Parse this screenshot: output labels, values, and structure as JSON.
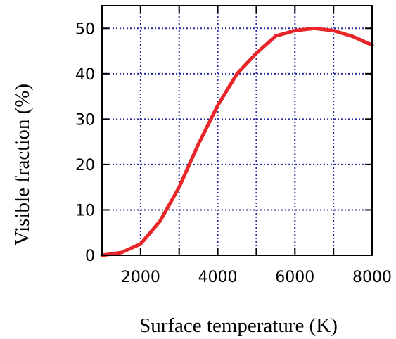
{
  "chart_data": {
    "type": "line",
    "xlabel": "Surface temperature (K)",
    "ylabel": "Visible fraction (%)",
    "xlim": [
      1000,
      8000
    ],
    "ylim": [
      0,
      55
    ],
    "x_ticks": [
      2000,
      4000,
      6000,
      8000
    ],
    "x_tick_labels": [
      "2000",
      "4000",
      "6000",
      "8000"
    ],
    "y_ticks": [
      0,
      10,
      20,
      30,
      40,
      50
    ],
    "y_tick_labels": [
      "0",
      "10",
      "20",
      "30",
      "40",
      "50"
    ],
    "grid": true,
    "colors": {
      "line": "#e8262a",
      "grid": "#2b2e9e",
      "axis": "#000000"
    },
    "series": [
      {
        "x": [
          1000,
          1500,
          2000,
          2500,
          3000,
          3500,
          4000,
          4500,
          5000,
          5500,
          6000,
          6500,
          7000,
          7500,
          8000
        ],
        "y": [
          0,
          0.6,
          2.5,
          7.5,
          15,
          24.5,
          33,
          40,
          44.5,
          48.3,
          49.5,
          50,
          49.5,
          48.2,
          46.3
        ]
      }
    ]
  }
}
